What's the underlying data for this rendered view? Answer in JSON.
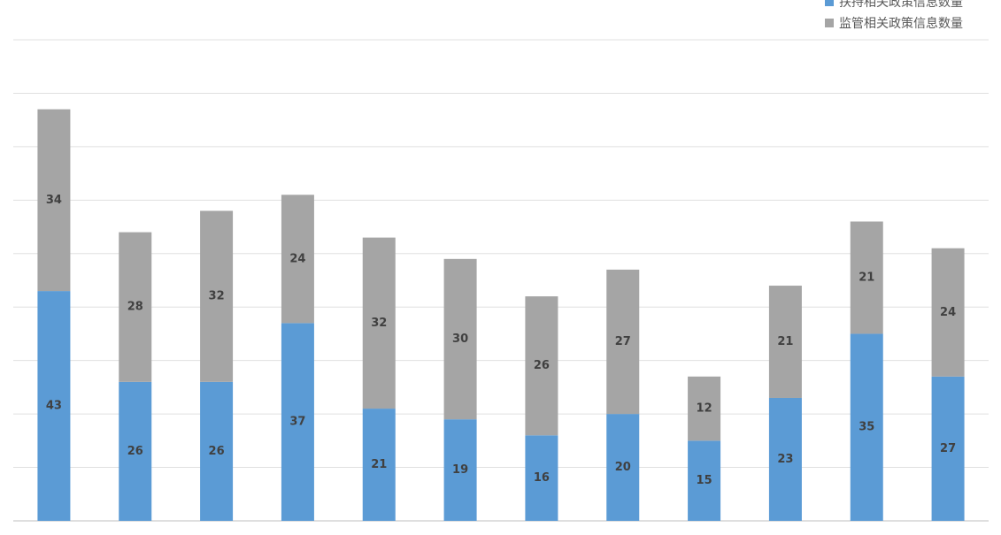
{
  "chart_data": {
    "type": "stacked_bar",
    "categories": [
      null,
      null,
      null,
      null,
      null,
      null,
      null,
      null,
      null,
      null,
      null,
      null
    ],
    "series": [
      {
        "name": "扶持相关政策信息数量",
        "color": "#5b9bd5",
        "values": [
          43,
          26,
          26,
          37,
          21,
          19,
          16,
          20,
          15,
          23,
          35,
          27
        ]
      },
      {
        "name": "监管相关政策信息数量",
        "color": "#a5a5a5",
        "values": [
          34,
          28,
          32,
          24,
          32,
          30,
          26,
          27,
          12,
          21,
          21,
          24
        ]
      }
    ],
    "ylim": [
      0,
      90
    ],
    "yticks": [
      0,
      10,
      20,
      30,
      40,
      50,
      60,
      70,
      80,
      90
    ],
    "grid": true,
    "legend": "top-right"
  }
}
